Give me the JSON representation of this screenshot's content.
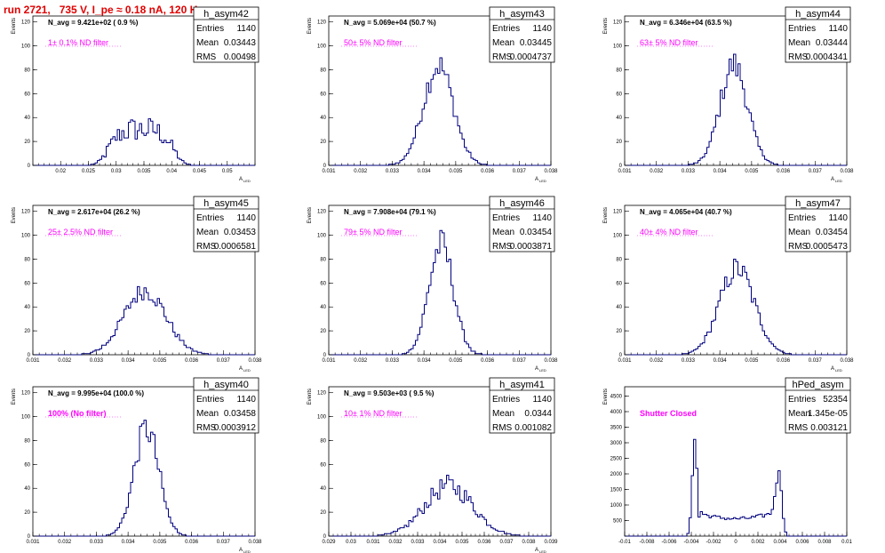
{
  "title": "run 2721,   735 V, I_pe ≈ 0.18 nA, 120 Hz",
  "colors": {
    "hist": "#00007f",
    "filter_text": "#ff00ff",
    "title": "#e00000"
  },
  "chart_data": [
    {
      "type": "histogram",
      "name": "h_asym42",
      "stats": {
        "entries": "1140",
        "mean": "0.03443",
        "rms": "0.00498"
      },
      "annotation": "N_avg = 9.421e+02 ( 0.9 %)",
      "filter": "1± 0.1% ND filter",
      "xlabel": "A_LED",
      "ylabel": "Events",
      "xlim": [
        0.015,
        0.055
      ],
      "ylim": [
        0,
        125
      ],
      "ydiv": 20,
      "xticks": [
        "0.02",
        "0.025",
        "0.03",
        "0.035",
        "0.04",
        "0.045",
        "0.05"
      ],
      "xtick_values": [
        0.02,
        0.025,
        0.03,
        0.035,
        0.04,
        0.045,
        0.05
      ],
      "yticks": [
        0,
        20,
        40,
        60,
        80,
        100,
        120
      ],
      "shape": "broad",
      "mean": 0.03443,
      "rms": 0.00498,
      "peak": 30,
      "noisy": true
    },
    {
      "type": "histogram",
      "name": "h_asym43",
      "stats": {
        "entries": "1140",
        "mean": "0.03445",
        "rms": "0.0004737"
      },
      "annotation": "N_avg = 5.069e+04 (50.7 %)",
      "filter": "50± 5% ND filter",
      "xlabel": "A_LED",
      "ylabel": "Events",
      "xlim": [
        0.031,
        0.038
      ],
      "ylim": [
        0,
        125
      ],
      "ydiv": 20,
      "xticks": [
        "0.031",
        "0.032",
        "0.033",
        "0.034",
        "0.035",
        "0.036",
        "0.037",
        "0.038"
      ],
      "xtick_values": [
        0.031,
        0.032,
        0.033,
        0.034,
        0.035,
        0.036,
        0.037,
        0.038
      ],
      "yticks": [
        0,
        20,
        40,
        60,
        80,
        100,
        120
      ],
      "shape": "gauss",
      "mean": 0.03445,
      "rms": 0.0004737,
      "peak": 84
    },
    {
      "type": "histogram",
      "name": "h_asym44",
      "stats": {
        "entries": "1140",
        "mean": "0.03444",
        "rms": "0.0004341"
      },
      "annotation": "N_avg = 6.346e+04 (63.5 %)",
      "filter": "63± 5% ND filter",
      "xlabel": "A_LED",
      "ylabel": "Events",
      "xlim": [
        0.031,
        0.038
      ],
      "ylim": [
        0,
        125
      ],
      "ydiv": 20,
      "xticks": [
        "0.031",
        "0.032",
        "0.033",
        "0.034",
        "0.035",
        "0.036",
        "0.037",
        "0.038"
      ],
      "xtick_values": [
        0.031,
        0.032,
        0.033,
        0.034,
        0.035,
        0.036,
        0.037,
        0.038
      ],
      "yticks": [
        0,
        20,
        40,
        60,
        80,
        100,
        120
      ],
      "shape": "gauss",
      "mean": 0.03444,
      "rms": 0.0004341,
      "peak": 84
    },
    {
      "type": "histogram",
      "name": "h_asym45",
      "stats": {
        "entries": "1140",
        "mean": "0.03453",
        "rms": "0.0006581"
      },
      "annotation": "N_avg = 2.617e+04 (26.2 %)",
      "filter": "25± 2.5% ND filter",
      "xlabel": "A_LED",
      "ylabel": "Events",
      "xlim": [
        0.031,
        0.038
      ],
      "ylim": [
        0,
        125
      ],
      "ydiv": 20,
      "xticks": [
        "0.031",
        "0.032",
        "0.033",
        "0.034",
        "0.035",
        "0.036",
        "0.037",
        "0.038"
      ],
      "xtick_values": [
        0.031,
        0.032,
        0.033,
        0.034,
        0.035,
        0.036,
        0.037,
        0.038
      ],
      "yticks": [
        0,
        20,
        40,
        60,
        80,
        100,
        120
      ],
      "shape": "gauss",
      "mean": 0.03453,
      "rms": 0.0006581,
      "peak": 54
    },
    {
      "type": "histogram",
      "name": "h_asym46",
      "stats": {
        "entries": "1140",
        "mean": "0.03454",
        "rms": "0.0003871"
      },
      "annotation": "N_avg = 7.908e+04 (79.1 %)",
      "filter": "79± 5% ND filter",
      "xlabel": "A_LED",
      "ylabel": "Events",
      "xlim": [
        0.031,
        0.038
      ],
      "ylim": [
        0,
        125
      ],
      "ydiv": 20,
      "xticks": [
        "0.031",
        "0.032",
        "0.033",
        "0.034",
        "0.035",
        "0.036",
        "0.037",
        "0.038"
      ],
      "xtick_values": [
        0.031,
        0.032,
        0.033,
        0.034,
        0.035,
        0.036,
        0.037,
        0.038
      ],
      "yticks": [
        0,
        20,
        40,
        60,
        80,
        100,
        120
      ],
      "shape": "gauss",
      "mean": 0.03454,
      "rms": 0.0003871,
      "peak": 92
    },
    {
      "type": "histogram",
      "name": "h_asym47",
      "stats": {
        "entries": "1140",
        "mean": "0.03454",
        "rms": "0.0005473"
      },
      "annotation": "N_avg = 4.065e+04 (40.7 %)",
      "filter": "40± 4% ND filter",
      "xlabel": "A_LED",
      "ylabel": "Events",
      "xlim": [
        0.031,
        0.038
      ],
      "ylim": [
        0,
        125
      ],
      "ydiv": 20,
      "xticks": [
        "0.031",
        "0.032",
        "0.033",
        "0.034",
        "0.035",
        "0.036",
        "0.037",
        "0.038"
      ],
      "xtick_values": [
        0.031,
        0.032,
        0.033,
        0.034,
        0.035,
        0.036,
        0.037,
        0.038
      ],
      "yticks": [
        0,
        20,
        40,
        60,
        80,
        100,
        120
      ],
      "shape": "gauss",
      "mean": 0.03454,
      "rms": 0.0005473,
      "peak": 72
    },
    {
      "type": "histogram",
      "name": "h_asym40",
      "stats": {
        "entries": "1140",
        "mean": "0.03458",
        "rms": "0.0003912"
      },
      "annotation": "N_avg = 9.995e+04 (100.0 %)",
      "filter": "100% (No filter)",
      "xlabel": "A_LED",
      "ylabel": "Events",
      "xlim": [
        0.031,
        0.038
      ],
      "ylim": [
        0,
        125
      ],
      "ydiv": 20,
      "xticks": [
        "0.031",
        "0.032",
        "0.033",
        "0.034",
        "0.035",
        "0.036",
        "0.037",
        "0.038"
      ],
      "xtick_values": [
        0.031,
        0.032,
        0.033,
        0.034,
        0.035,
        0.036,
        0.037,
        0.038
      ],
      "yticks": [
        0,
        20,
        40,
        60,
        80,
        100,
        120
      ],
      "shape": "gauss",
      "mean": 0.03458,
      "rms": 0.0003912,
      "peak": 90
    },
    {
      "type": "histogram",
      "name": "h_asym41",
      "stats": {
        "entries": "1140",
        "mean": "0.0344",
        "rms": "0.001082"
      },
      "annotation": "N_avg = 9.503e+03 ( 9.5 %)",
      "filter": "10± 1% ND filter",
      "xlabel": "A_LED",
      "ylabel": "Events",
      "xlim": [
        0.029,
        0.039
      ],
      "ylim": [
        0,
        125
      ],
      "ydiv": 20,
      "xticks": [
        "0.029",
        "0.03",
        "0.031",
        "0.032",
        "0.033",
        "0.034",
        "0.035",
        "0.036",
        "0.037",
        "0.038",
        "0.039"
      ],
      "xtick_values": [
        0.029,
        0.03,
        0.031,
        0.032,
        0.033,
        0.034,
        0.035,
        0.036,
        0.037,
        0.038,
        0.039
      ],
      "yticks": [
        0,
        20,
        40,
        60,
        80,
        100,
        120
      ],
      "shape": "gauss",
      "mean": 0.0344,
      "rms": 0.001082,
      "peak": 42,
      "noisy": true
    },
    {
      "type": "histogram",
      "name": "hPed_asym",
      "stats": {
        "entries": "52354",
        "mean": "1.345e-05",
        "rms": "0.003121"
      },
      "annotation": "",
      "filter": "Shutter Closed",
      "xlabel": "",
      "ylabel": "Events",
      "xlim": [
        -0.01,
        0.01
      ],
      "ylim": [
        0,
        4800
      ],
      "ydiv": 500,
      "xticks": [
        "-0.01",
        "-0.008",
        "-0.006",
        "-0.004",
        "-0.002",
        "0",
        "0.002",
        "0.004",
        "0.006",
        "0.008",
        "0.01"
      ],
      "xtick_values": [
        -0.01,
        -0.008,
        -0.006,
        -0.004,
        -0.002,
        0,
        0.002,
        0.004,
        0.006,
        0.008,
        0.01
      ],
      "yticks": [
        500,
        1000,
        1500,
        2000,
        2500,
        3000,
        3500,
        4000,
        4500
      ],
      "shape": "pedestal",
      "peak": 4600
    }
  ]
}
